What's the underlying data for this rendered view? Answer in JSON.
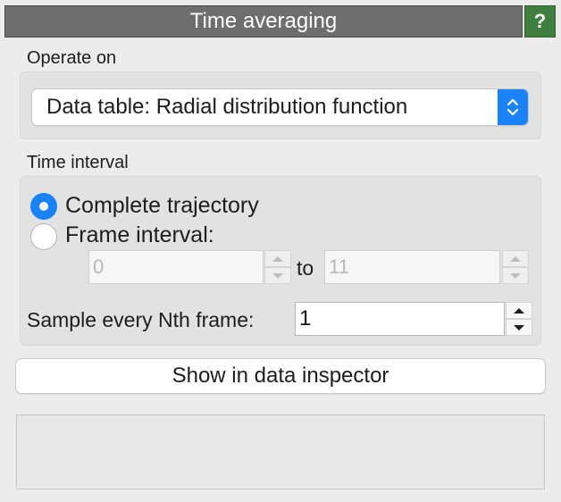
{
  "header": {
    "title": "Time averaging",
    "help_label": "?"
  },
  "operate_on": {
    "label": "Operate on",
    "selected": "Data table: Radial distribution function",
    "arrows_icon": "up-down-chevron-icon"
  },
  "time_interval": {
    "label": "Time interval",
    "options": [
      {
        "label": "Complete trajectory",
        "checked": true
      },
      {
        "label": "Frame interval:",
        "checked": false
      }
    ],
    "start_value": "0",
    "to_label": "to",
    "end_value": "11"
  },
  "sampling": {
    "label": "Sample every Nth frame:",
    "value": "1"
  },
  "actions": {
    "show_inspector_label": "Show in data inspector"
  },
  "colors": {
    "accent": "#1a82fb",
    "help": "#3f7f3f",
    "title_bar": "#6e6e6e"
  }
}
